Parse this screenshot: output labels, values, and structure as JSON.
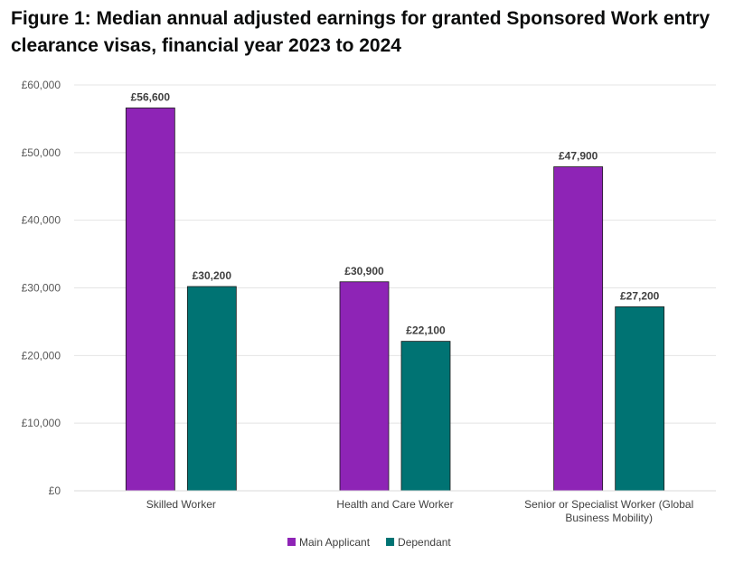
{
  "chart_data": {
    "type": "bar",
    "title": "Figure 1: Median annual adjusted earnings for granted Sponsored Work entry clearance visas, financial year 2023 to 2024",
    "xlabel": "",
    "ylabel": "",
    "categories": [
      [
        "Skilled Worker"
      ],
      [
        "Health and Care Worker"
      ],
      [
        "Senior or Specialist Worker (Global",
        "Business Mobility)"
      ]
    ],
    "series": [
      {
        "name": "Main Applicant",
        "color": "#8e24b6",
        "values": [
          56600,
          30900,
          47900
        ],
        "labels": [
          "£56,600",
          "£30,900",
          "£47,900"
        ]
      },
      {
        "name": "Dependant",
        "color": "#007373",
        "values": [
          30200,
          22100,
          27200
        ],
        "labels": [
          "£30,200",
          "£22,100",
          "£27,200"
        ]
      }
    ],
    "ylim": [
      0,
      60000
    ],
    "yticks": [
      0,
      10000,
      20000,
      30000,
      40000,
      50000,
      60000
    ],
    "ytick_labels": [
      "£0",
      "£10,000",
      "£20,000",
      "£30,000",
      "£40,000",
      "£50,000",
      "£60,000"
    ],
    "grid": true,
    "legend_position": "bottom"
  }
}
